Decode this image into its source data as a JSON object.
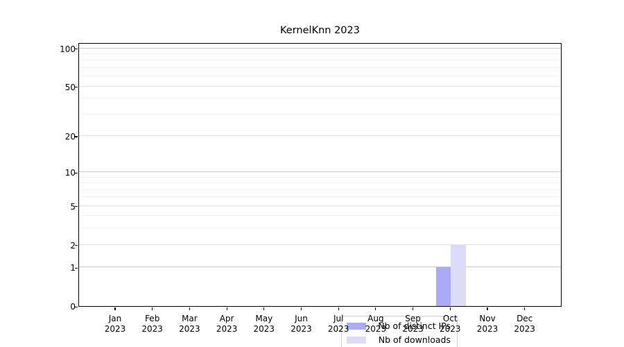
{
  "chart_data": {
    "type": "bar",
    "title": "KernelKnn 2023",
    "categories": [
      "Jan",
      "Feb",
      "Mar",
      "Apr",
      "May",
      "Jun",
      "Jul",
      "Aug",
      "Sep",
      "Oct",
      "Nov",
      "Dec"
    ],
    "category_year": "2023",
    "series": [
      {
        "name": "Nb of distinct IPs",
        "color": "#aaaaf7",
        "values": [
          0,
          0,
          0,
          0,
          0,
          0,
          0,
          0,
          0,
          1,
          0,
          0
        ]
      },
      {
        "name": "Nb of downloads",
        "color": "#dcdcf8",
        "values": [
          0,
          0,
          0,
          0,
          0,
          0,
          0,
          0,
          0,
          2,
          0,
          0
        ]
      }
    ],
    "xlabel": "",
    "ylabel": "",
    "y_axis": {
      "scale": "log1p",
      "tick_labels": [
        "0",
        "1",
        "2",
        "5",
        "10",
        "20",
        "50",
        "100"
      ],
      "major_ticks": [
        0,
        1,
        2,
        5,
        10,
        20,
        50,
        100
      ],
      "minor_gridlines": [
        3,
        4,
        6,
        7,
        8,
        9,
        30,
        40,
        60,
        70,
        80,
        90
      ],
      "ylim": [
        0,
        112
      ]
    },
    "grid": true,
    "legend_position": "lower-center"
  }
}
